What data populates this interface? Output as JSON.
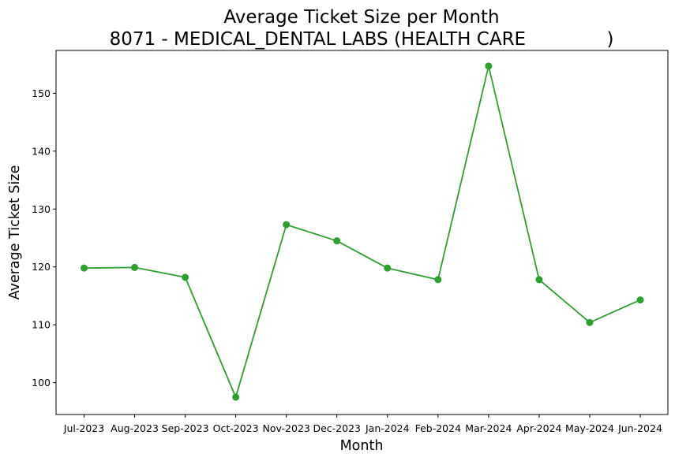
{
  "chart_data": {
    "type": "line",
    "title_line1": "Average Ticket Size per Month",
    "title_line2": "8071 - MEDICAL_DENTAL LABS (HEALTH CARE              )",
    "xlabel": "Month",
    "ylabel": "Average Ticket Size",
    "categories": [
      "Jul-2023",
      "Aug-2023",
      "Sep-2023",
      "Oct-2023",
      "Nov-2023",
      "Dec-2023",
      "Jan-2024",
      "Feb-2024",
      "Mar-2024",
      "Apr-2024",
      "May-2024",
      "Jun-2024"
    ],
    "series": [
      {
        "values": [
          119.8,
          119.9,
          118.2,
          97.5,
          127.3,
          124.5,
          119.8,
          117.8,
          154.7,
          117.8,
          110.4,
          114.3
        ],
        "color": "#2ca02c",
        "marker": "circle"
      }
    ],
    "ylim": [
      94.5,
      157.4
    ],
    "yticks": [
      100,
      110,
      120,
      130,
      140,
      150
    ],
    "grid": false,
    "legend": "none"
  }
}
